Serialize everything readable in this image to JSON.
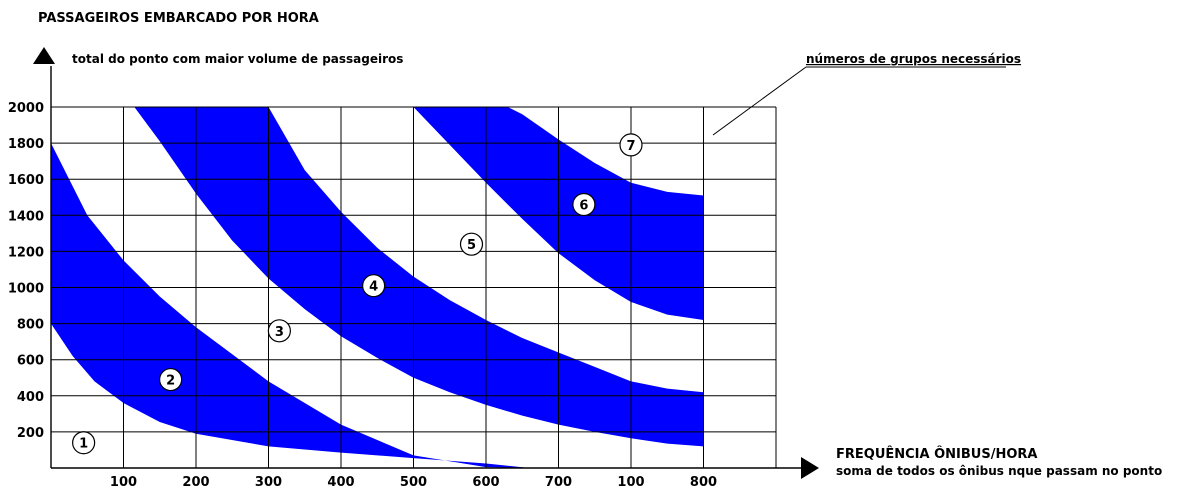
{
  "chart_data": {
    "type": "area",
    "title": "",
    "ylabel": "PASSAGEIROS EMBARCADO POR HORA",
    "ylabel_sub": "total do ponto com maior volume de passageiros",
    "xlabel": "FREQUÊNCIA ÔNIBUS/HORA",
    "xlabel_sub": "soma de todos os ônibus nque passam no ponto",
    "annotation": "números de grupos necessários",
    "x_tick_labels": [
      "100",
      "200",
      "300",
      "400",
      "500",
      "600",
      "700",
      "100",
      "800"
    ],
    "x_grid_count": 10,
    "y_ticks": [
      200,
      400,
      600,
      800,
      1000,
      1200,
      1400,
      1600,
      1800,
      2000
    ],
    "ylim": [
      0,
      2000
    ],
    "grid": true,
    "band_color": "#0000ff",
    "bands": [
      {
        "name": "band-1",
        "lower": {
          "x": [
            0,
            0.3,
            0.6,
            1.0,
            1.5,
            2.0,
            3.0,
            4.0,
            5.0,
            6.0,
            6.6
          ],
          "y": [
            800,
            620,
            480,
            360,
            255,
            190,
            120,
            85,
            55,
            25,
            0
          ]
        },
        "upper": {
          "x": [
            0,
            0.5,
            1.0,
            1.5,
            2.0,
            2.5,
            3.0,
            4.0,
            5.0,
            6.0,
            6.6
          ],
          "y": [
            1800,
            1400,
            1150,
            950,
            780,
            630,
            480,
            240,
            70,
            5,
            0
          ]
        }
      },
      {
        "name": "band-2",
        "lower": {
          "x": [
            3.0,
            3.5,
            4.0,
            4.5,
            5.0,
            5.5,
            6.0,
            6.5,
            7.0,
            7.5,
            8.0,
            8.5,
            9.0
          ],
          "y": [
            2000,
            1650,
            1420,
            1220,
            1060,
            930,
            820,
            720,
            640,
            560,
            480,
            440,
            420
          ]
        },
        "upper": {
          "x": [
            1.15,
            1.5,
            2.0,
            2.5,
            3.0,
            3.5,
            4.0,
            4.5,
            5.0,
            5.5,
            6.0,
            6.5,
            7.0,
            7.5,
            8.0,
            8.5,
            9.0
          ],
          "y": [
            2000,
            1810,
            1520,
            1260,
            1050,
            880,
            730,
            610,
            500,
            420,
            350,
            290,
            240,
            200,
            165,
            135,
            120
          ]
        }
      },
      {
        "name": "band-3",
        "lower": {
          "x": [
            5.0,
            5.5,
            6.0,
            6.5,
            7.0,
            7.5,
            8.0,
            8.5,
            9.0
          ],
          "y": [
            2000,
            1790,
            1580,
            1380,
            1190,
            1040,
            920,
            850,
            820
          ]
        },
        "upper": {
          "x": [
            6.3,
            6.5,
            7.0,
            7.5,
            8.0,
            8.5,
            9.0
          ],
          "y": [
            2000,
            1960,
            1820,
            1690,
            1580,
            1530,
            1510
          ]
        }
      }
    ],
    "zone_labels": [
      {
        "text": "1",
        "x": 0.45,
        "y": 140
      },
      {
        "text": "2",
        "x": 1.65,
        "y": 490
      },
      {
        "text": "3",
        "x": 3.15,
        "y": 760
      },
      {
        "text": "4",
        "x": 4.45,
        "y": 1010
      },
      {
        "text": "5",
        "x": 5.8,
        "y": 1240
      },
      {
        "text": "6",
        "x": 7.35,
        "y": 1460
      },
      {
        "text": "7",
        "x": 8.0,
        "y": 1790
      }
    ]
  }
}
